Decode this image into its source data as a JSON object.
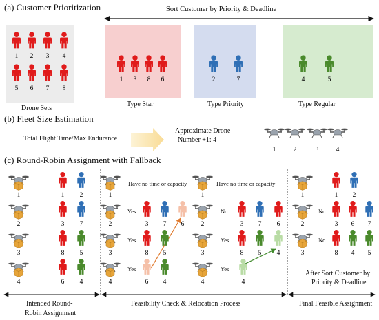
{
  "section_a": {
    "title": "(a)  Customer Prioritization",
    "sort_label": "Sort Customer by Priority & Deadline",
    "drone_sets_label": "Drone Sets",
    "drone_sets_numbers": [
      "1",
      "2",
      "3",
      "4",
      "5",
      "6",
      "7",
      "8"
    ],
    "star": {
      "label": "Type Star",
      "numbers": [
        "1",
        "3",
        "8",
        "6"
      ]
    },
    "priority": {
      "label": "Type Priority",
      "numbers": [
        "2",
        "7"
      ]
    },
    "regular": {
      "label": "Type Regular",
      "numbers": [
        "4",
        "5"
      ]
    }
  },
  "section_b": {
    "title": "(b)  Fleet Size Estimation",
    "formula": "Total Flight Time/Max Endurance",
    "approx_line1": "Approximate Drone",
    "approx_line2": "Number +1:  4",
    "drone_numbers": [
      "1",
      "2",
      "3",
      "4"
    ]
  },
  "section_c": {
    "title": "(c)  Round-Robin Assignment with Fallback",
    "col1_label_line1": "Intended Round-",
    "col1_label_line2": "Robin Assignment",
    "col2_label": "Feasibility Check & Relocation Process",
    "col3_label": "Final Feasible Assignment",
    "no_time_text": "Have no time or capacity",
    "after_sort_line1": "After Sort Customer by",
    "after_sort_line2": "Priority & Deadline",
    "yes": "Yes",
    "no": "No",
    "drone_nums": [
      "1",
      "2",
      "3",
      "4"
    ],
    "col1_rows": [
      [
        "1",
        "2"
      ],
      [
        "3",
        "7"
      ],
      [
        "8",
        "5"
      ],
      [
        "6",
        "4"
      ]
    ],
    "mid_left_rows": [
      [
        "3",
        "7",
        "6"
      ],
      [
        "8",
        "5"
      ],
      [
        "6",
        "4"
      ]
    ],
    "mid_right_rows": [
      [
        "3",
        "7",
        "6"
      ],
      [
        "8",
        "5",
        "4"
      ],
      [
        "4"
      ]
    ],
    "final_rows": [
      [
        "1",
        "2"
      ],
      [
        "3",
        "6",
        "7"
      ],
      [
        "8",
        "4",
        "5"
      ]
    ]
  },
  "colors": {
    "red": "#e01b1b",
    "blue": "#2f6fb5",
    "green": "#4a8a2c",
    "faded_red": "#f5c0a8",
    "faded_green": "#b9dca5",
    "star_bg": "#f7cfcf",
    "priority_bg": "#d4dcef",
    "regular_bg": "#d6ebcf",
    "drone_set_bg": "#ececec",
    "package": "#e7a53a",
    "arrow_orange": "#e07a2e",
    "arrow_green": "#3f8a2a"
  }
}
